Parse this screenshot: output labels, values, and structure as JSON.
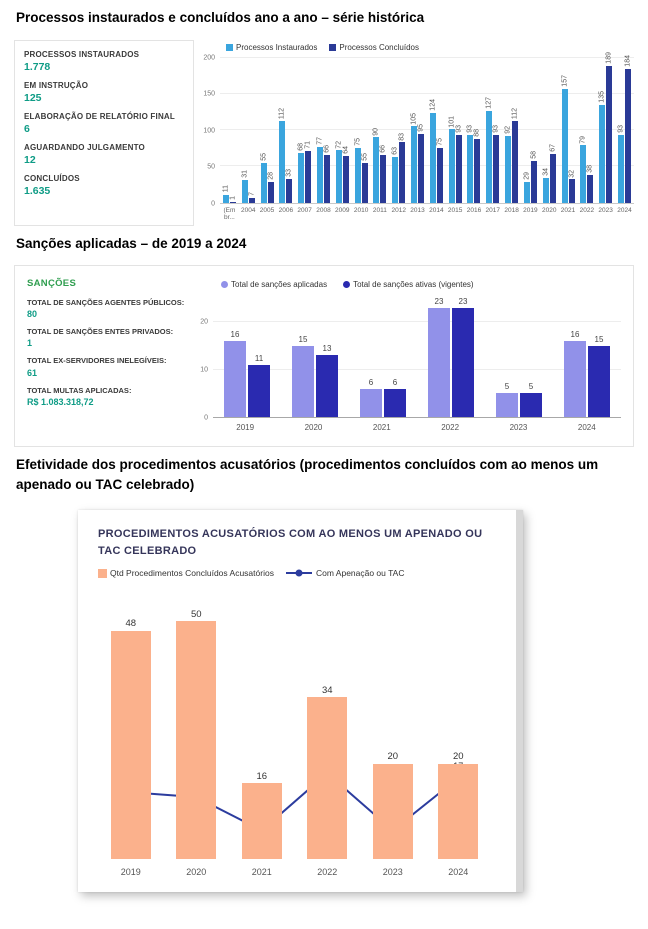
{
  "page": {
    "section1_title": "Processos instaurados e concluídos ano a ano – série histórica",
    "section2_title": "Sanções aplicadas – de 2019 a 2024",
    "section3_title": "Efetividade dos procedimentos acusatórios (procedimentos concluídos com ao menos um apenado ou TAC celebrado)"
  },
  "colors": {
    "stat_value": "#0f9c86",
    "sancoes_header_green": "#2f9e4f"
  },
  "panel1": {
    "stats": [
      {
        "label": "PROCESSOS INSTAURADOS",
        "value": "1.778"
      },
      {
        "label": "EM INSTRUÇÃO",
        "value": "125"
      },
      {
        "label": "ELABORAÇÃO DE RELATÓRIO FINAL",
        "value": "6"
      },
      {
        "label": "AGUARDANDO JULGAMENTO",
        "value": "12"
      },
      {
        "label": "CONCLUÍDOS",
        "value": "1.635"
      }
    ]
  },
  "panel2": {
    "header": "SANÇÕES",
    "stats": [
      {
        "label": "TOTAL DE SANÇÕES AGENTES PÚBLICOS:",
        "value": "80"
      },
      {
        "label": "TOTAL DE SANÇÕES ENTES PRIVADOS:",
        "value": "1"
      },
      {
        "label": "TOTAL EX-SERVIDORES INELEGÍVEIS:",
        "value": "61"
      },
      {
        "label": "TOTAL MULTAS APLICADAS:",
        "value": "R$ 1.083.318,72"
      }
    ]
  },
  "chart_data": [
    {
      "type": "bar",
      "title": "Processos instaurados e concluídos ano a ano",
      "categories": [
        "(Em br...",
        "2004",
        "2005",
        "2006",
        "2007",
        "2008",
        "2009",
        "2010",
        "2011",
        "2012",
        "2013",
        "2014",
        "2015",
        "2016",
        "2017",
        "2018",
        "2019",
        "2020",
        "2021",
        "2022",
        "2023",
        "2024"
      ],
      "series": [
        {
          "name": "Processos Instaurados",
          "color": "#3aa5de",
          "values": [
            11,
            31,
            55,
            112,
            68,
            77,
            72,
            75,
            90,
            63,
            105,
            124,
            101,
            93,
            127,
            92,
            29,
            34,
            157,
            79,
            135,
            93
          ]
        },
        {
          "name": "Processos Concluídos",
          "color": "#2a3a96",
          "values": [
            1,
            7,
            28,
            33,
            71,
            66,
            64,
            55,
            66,
            83,
            95,
            75,
            93,
            88,
            93,
            112,
            58,
            67,
            32,
            38,
            189,
            184
          ]
        }
      ],
      "ylim": [
        0,
        200
      ],
      "yticks": [
        0,
        50,
        100,
        150,
        200
      ],
      "grid": true,
      "legend_position": "top",
      "value_labels": "rotated-vertical"
    },
    {
      "type": "bar",
      "title": "Sanções aplicadas de 2019 a 2024",
      "categories": [
        "2019",
        "2020",
        "2021",
        "2022",
        "2023",
        "2024"
      ],
      "series": [
        {
          "name": "Total de sanções aplicadas",
          "color": "#9191e9",
          "values": [
            16,
            15,
            6,
            23,
            5,
            16
          ]
        },
        {
          "name": "Total de sanções ativas (vigentes)",
          "color": "#2a2ab0",
          "values": [
            11,
            13,
            6,
            23,
            5,
            15
          ]
        }
      ],
      "ylim": [
        0,
        25
      ],
      "yticks": [
        0,
        10,
        20
      ],
      "grid": true,
      "legend_position": "top",
      "value_labels": "horizontal"
    },
    {
      "type": "bar+line",
      "title": "PROCEDIMENTOS ACUSATÓRIOS COM AO MENOS UM APENADO OU TAC CELEBRADO",
      "categories": [
        "2019",
        "2020",
        "2021",
        "2022",
        "2023",
        "2024"
      ],
      "series": [
        {
          "name": "Qtd Procedimentos Concluídos Acusatórios",
          "type": "bar",
          "color": "#fbb18c",
          "values": [
            48,
            50,
            16,
            34,
            20,
            20
          ]
        },
        {
          "name": "Com Apenação ou TAC",
          "type": "line",
          "color": "#2c3c9e",
          "values": [
            14,
            13,
            6,
            18,
            6,
            17
          ],
          "label_positions": [
            "above",
            "above",
            "below",
            "above",
            "below",
            "above"
          ]
        }
      ],
      "ylim": [
        0,
        55
      ],
      "grid": false,
      "legend_position": "top-left"
    }
  ]
}
